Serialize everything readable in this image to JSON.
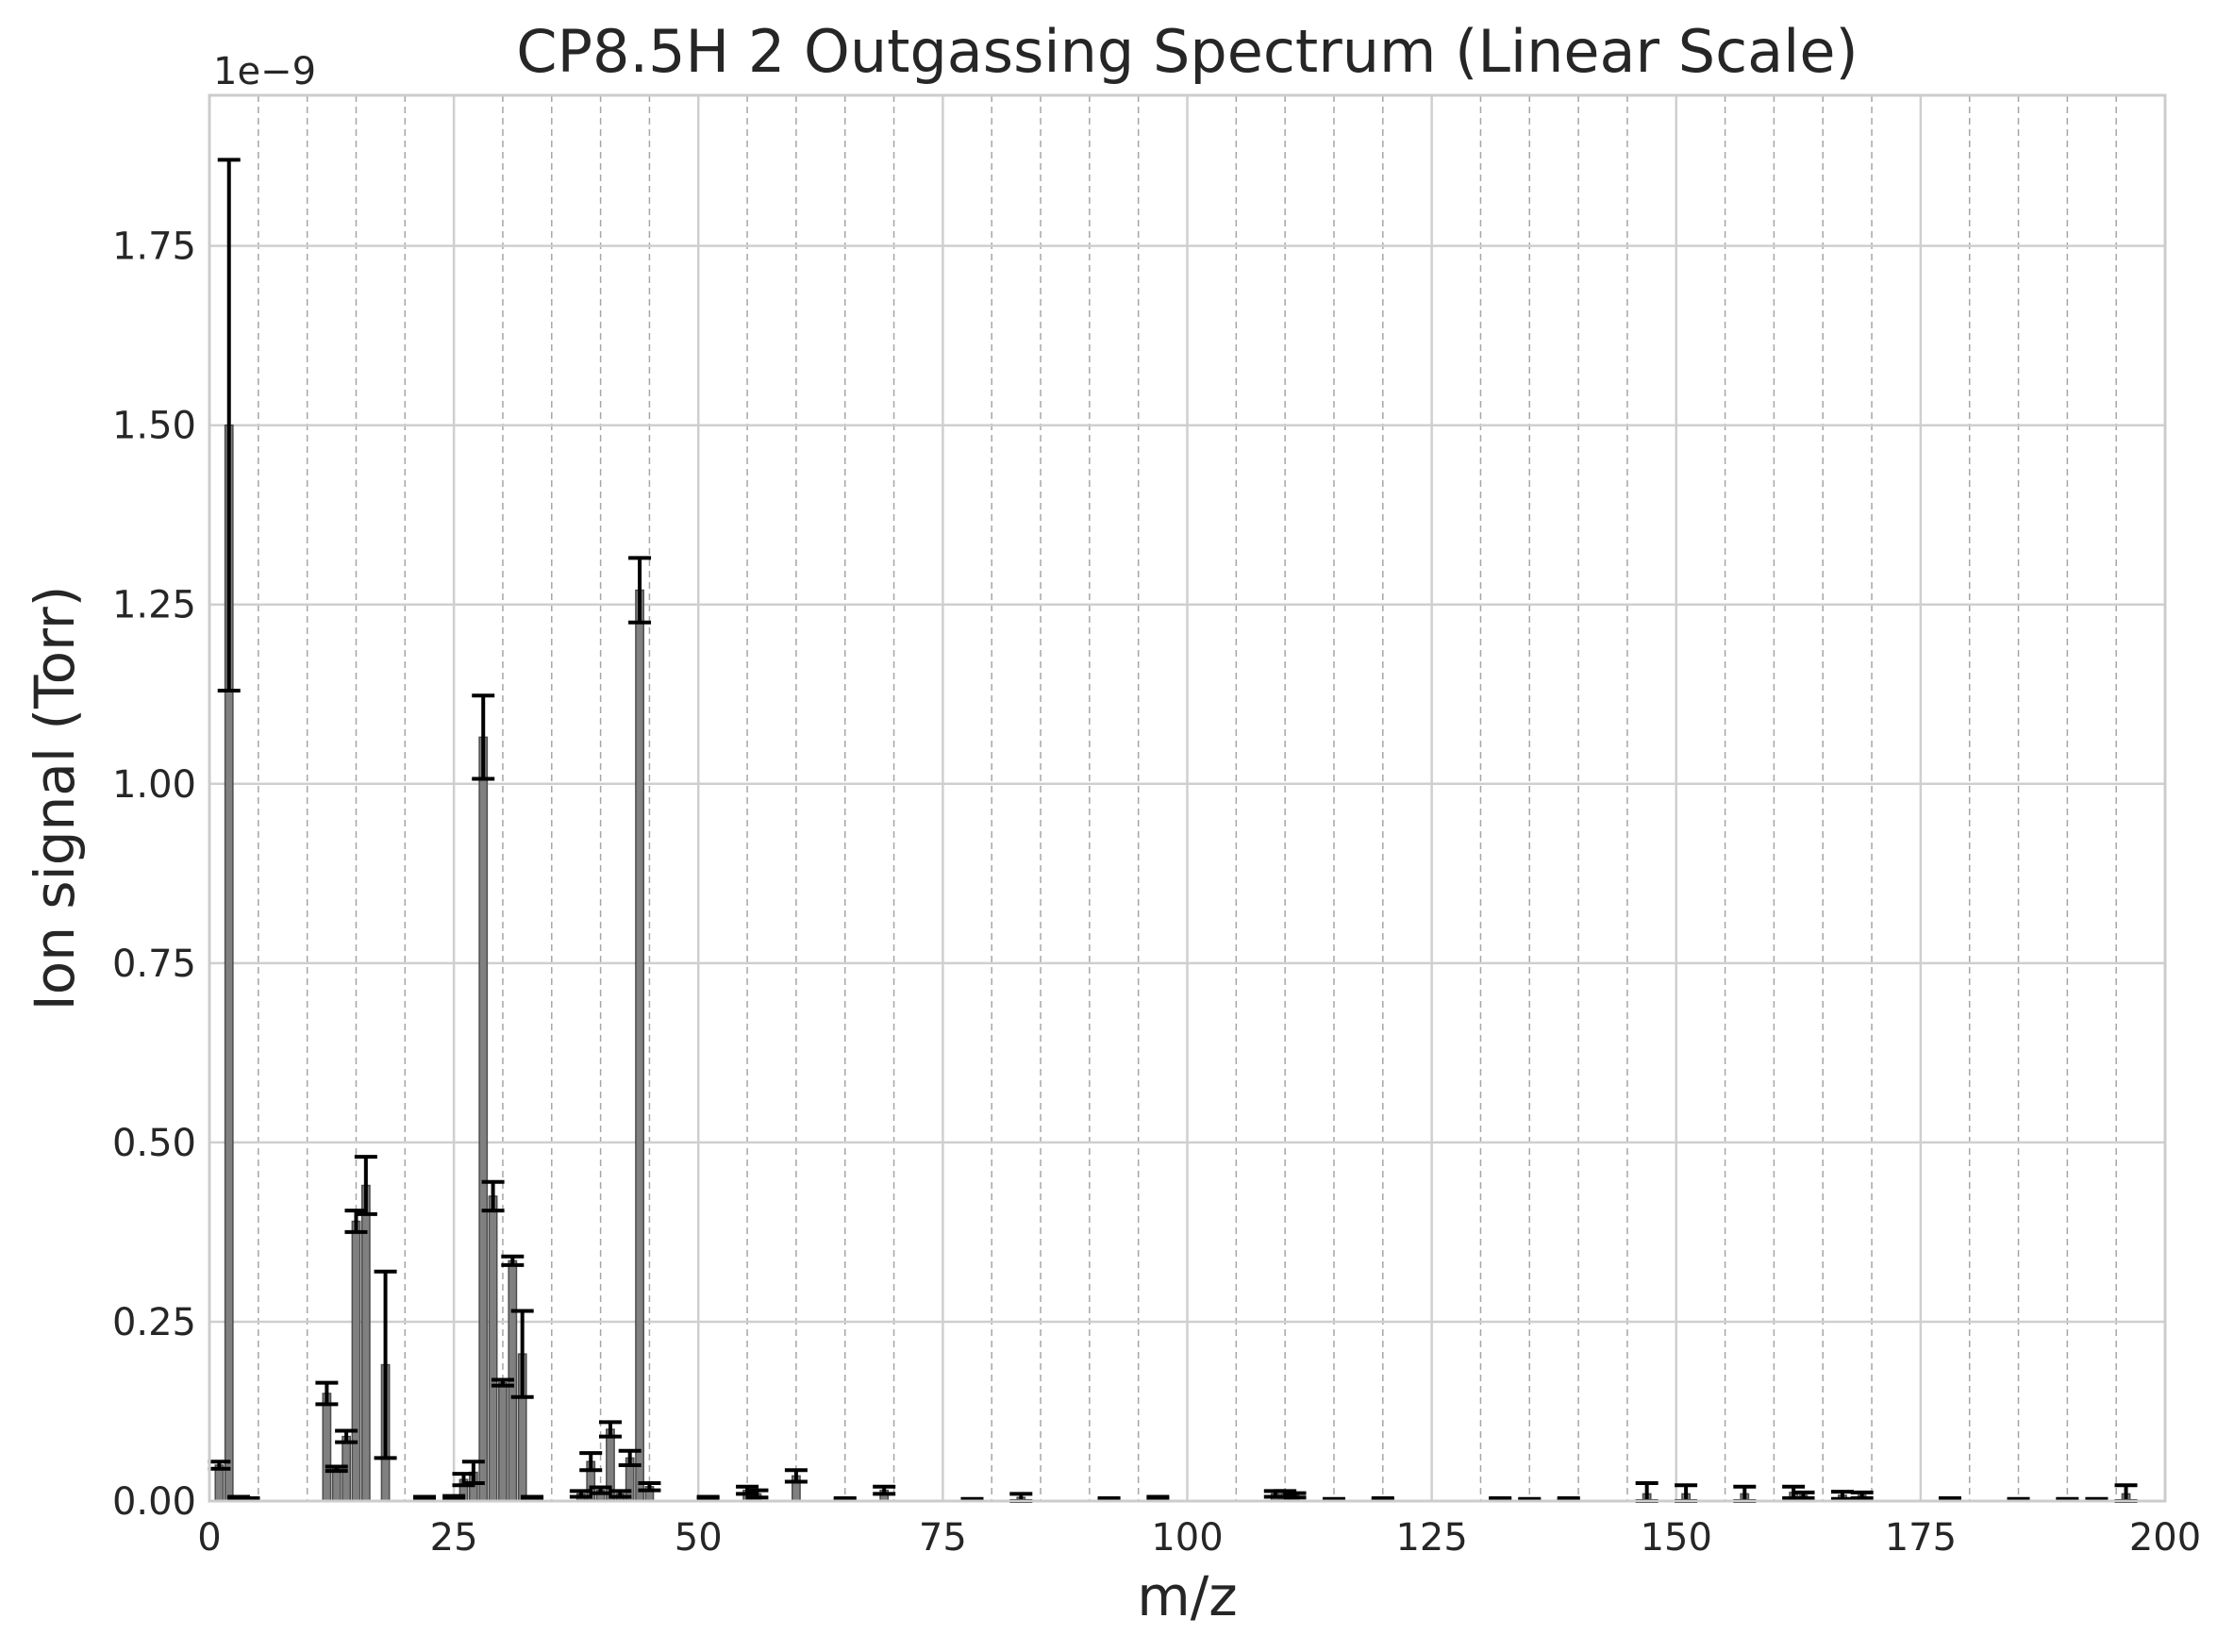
{
  "chart_data": {
    "type": "bar",
    "title": "CP8.5H 2 Outgassing Spectrum (Linear Scale)",
    "xlabel": "m/z",
    "ylabel": "Ion signal (Torr)",
    "y_offset_text": "1e−9",
    "y_scale_factor": 1e-09,
    "xlim": [
      0,
      200
    ],
    "ylim": [
      0,
      1.96
    ],
    "x_ticks": [
      0,
      25,
      50,
      75,
      100,
      125,
      150,
      175,
      200
    ],
    "x_tick_labels": [
      "0",
      "25",
      "50",
      "75",
      "100",
      "125",
      "150",
      "175",
      "200"
    ],
    "y_ticks": [
      0,
      0.25,
      0.5,
      0.75,
      1.0,
      1.25,
      1.5,
      1.75
    ],
    "y_tick_labels": [
      "0.00",
      "0.25",
      "0.50",
      "0.75",
      "1.00",
      "1.25",
      "1.50",
      "1.75"
    ],
    "grid": true,
    "minor_x_grid_step": 5,
    "bar_color": "#808080",
    "bar_edge_color": "#4d4d4d",
    "error_bar_color": "#000000",
    "series": [
      {
        "mz": [
          1,
          2,
          3,
          4,
          12,
          13,
          14,
          15,
          16,
          18,
          22,
          25,
          26,
          27,
          28,
          29,
          30,
          31,
          32,
          33,
          38,
          39,
          40,
          41,
          42,
          43,
          44,
          45,
          51,
          55,
          56,
          60,
          65,
          69,
          78,
          83,
          92,
          97,
          109,
          110,
          111,
          115,
          120,
          132,
          135,
          139,
          147,
          151,
          157,
          162,
          163,
          167,
          169,
          178,
          185,
          190,
          193,
          196
        ],
        "value": [
          0.05,
          1.5,
          0.005,
          0.003,
          0.15,
          0.045,
          0.09,
          0.39,
          0.44,
          0.19,
          0.005,
          0.005,
          0.03,
          0.04,
          1.065,
          0.425,
          0.165,
          0.335,
          0.205,
          0.005,
          0.01,
          0.055,
          0.015,
          0.1,
          0.01,
          0.06,
          1.27,
          0.02,
          0.005,
          0.015,
          0.01,
          0.035,
          0.003,
          0.015,
          0.002,
          0.005,
          0.003,
          0.004,
          0.01,
          0.01,
          0.008,
          0.002,
          0.003,
          0.003,
          0.002,
          0.003,
          0.01,
          0.01,
          0.01,
          0.012,
          0.008,
          0.008,
          0.008,
          0.003,
          0.002,
          0.002,
          0.002,
          0.01
        ],
        "error": [
          0.005,
          0.37,
          0.001,
          0.001,
          0.015,
          0.003,
          0.008,
          0.015,
          0.04,
          0.13,
          0.001,
          0.002,
          0.008,
          0.015,
          0.058,
          0.02,
          0.004,
          0.006,
          0.06,
          0.001,
          0.004,
          0.012,
          0.004,
          0.01,
          0.004,
          0.01,
          0.045,
          0.005,
          0.001,
          0.005,
          0.005,
          0.008,
          0.001,
          0.005,
          0.001,
          0.005,
          0.001,
          0.002,
          0.004,
          0.004,
          0.003,
          0.001,
          0.001,
          0.001,
          0.001,
          0.001,
          0.015,
          0.012,
          0.01,
          0.008,
          0.004,
          0.005,
          0.004,
          0.001,
          0.001,
          0.001,
          0.001,
          0.012
        ]
      }
    ]
  }
}
